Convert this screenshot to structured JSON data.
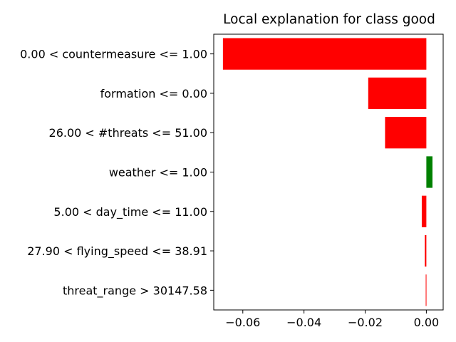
{
  "chart_data": {
    "type": "bar",
    "orientation": "horizontal",
    "title": "Local explanation for class good",
    "xlabel": "",
    "ylabel": "",
    "categories": [
      "0.00 < countermeasure <= 1.00",
      "formation <= 0.00",
      "26.00 < #threats <= 51.00",
      "weather <= 1.00",
      "5.00 < day_time <= 11.00",
      "27.90 < flying_speed <= 38.91",
      "threat_range > 30147.58"
    ],
    "values": [
      -0.0665,
      -0.019,
      -0.0135,
      0.002,
      -0.0015,
      -0.0005,
      -0.0002
    ],
    "xlim": [
      -0.0695,
      0.0055
    ],
    "xticks": [
      -0.06,
      -0.04,
      -0.02,
      0.0
    ],
    "xtick_labels": [
      "−0.06",
      "−0.04",
      "−0.02",
      "0.00"
    ],
    "grid": false,
    "colors": {
      "positive": "#008000",
      "negative": "#ff0000"
    }
  }
}
